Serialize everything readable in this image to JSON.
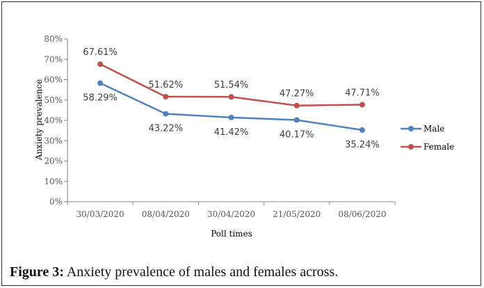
{
  "chart_data": {
    "type": "line",
    "title": "",
    "xlabel": "Poll times",
    "ylabel": "Anxiety prevalence",
    "categories": [
      "30/03/2020",
      "08/04/2020",
      "30/04/2020",
      "21/05/2020",
      "08/06/2020"
    ],
    "yticks": [
      "0%",
      "10%",
      "20%",
      "30%",
      "40%",
      "50%",
      "60%",
      "70%",
      "80%"
    ],
    "ylim": [
      0,
      80
    ],
    "grid": false,
    "legend_position": "right",
    "series": [
      {
        "name": "Male",
        "color": "#4F81BD",
        "values": [
          58.29,
          43.22,
          41.42,
          40.17,
          35.24
        ],
        "labels": [
          "58.29%",
          "43.22%",
          "41.42%",
          "40.17%",
          "35.24%"
        ]
      },
      {
        "name": "Female",
        "color": "#C0504D",
        "values": [
          67.61,
          51.62,
          51.54,
          47.27,
          47.71
        ],
        "labels": [
          "67.61%",
          "51.62%",
          "51.54%",
          "47.27%",
          "47.71%"
        ]
      }
    ]
  },
  "caption": {
    "label": "Figure 3:",
    "text": " Anxiety prevalence of males and females across."
  }
}
